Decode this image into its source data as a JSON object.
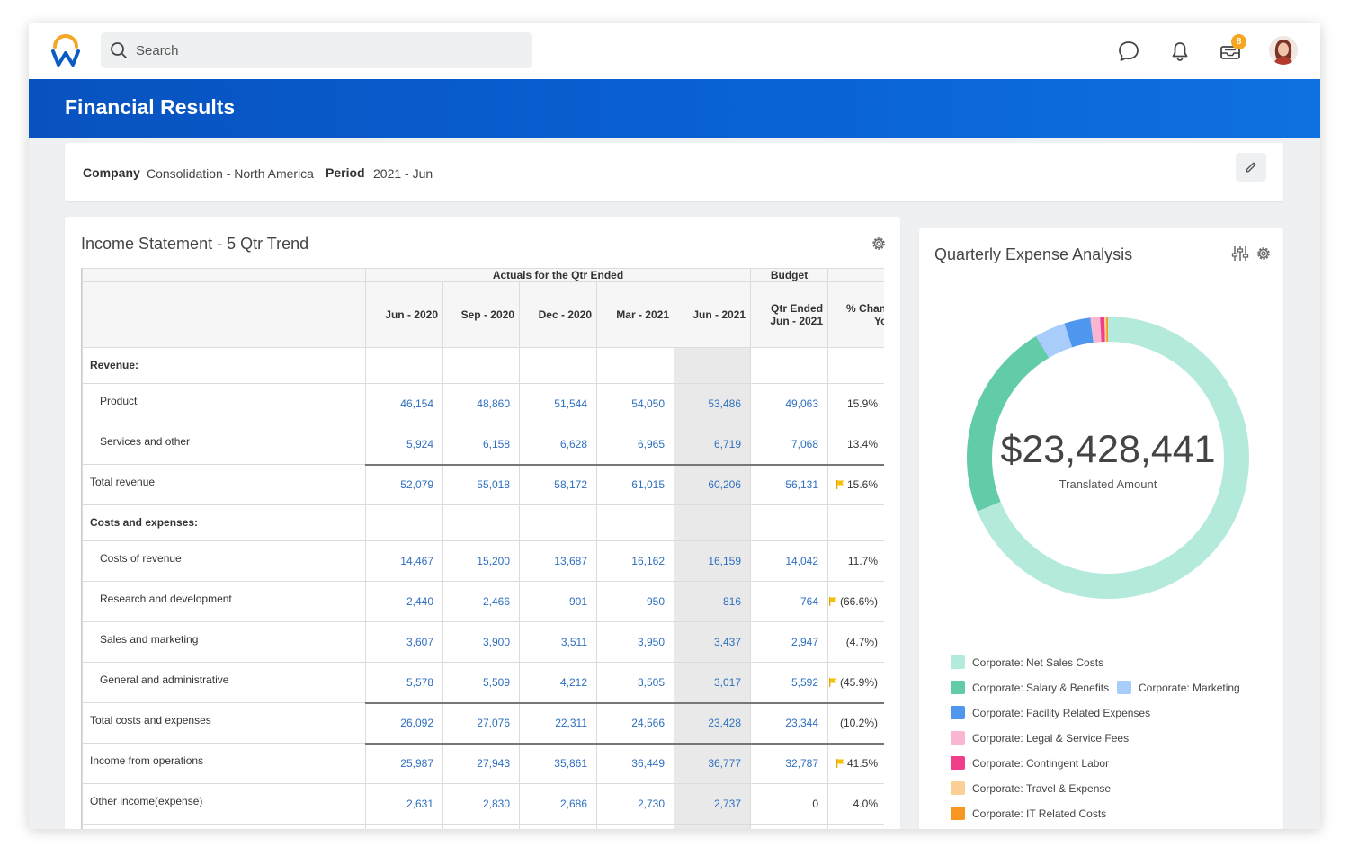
{
  "header": {
    "search_placeholder": "Search",
    "inbox_badge": "8",
    "icons": [
      "workday-logo",
      "search-icon",
      "chat-icon",
      "bell-icon",
      "inbox-icon",
      "avatar"
    ]
  },
  "banner": {
    "title": "Financial Results"
  },
  "prompts": {
    "company_label": "Company",
    "company_value": "Consolidation - North America",
    "period_label": "Period",
    "period_value": "2021 - Jun"
  },
  "income_statement": {
    "title": "Income Statement - 5 Qtr Trend",
    "group_actuals": "Actuals for the Qtr Ended",
    "group_budget": "Budget",
    "col1": "Jun - 2020",
    "col2": "Sep - 2020",
    "col3": "Dec - 2020",
    "col4": "Mar - 2021",
    "col5": "Jun - 2021",
    "col6_line1": "Qtr Ended",
    "col6_line2": "Jun - 2021",
    "col7_line1": "% Change",
    "col7_line2": "Yo",
    "revenue_label": "Revenue:",
    "costs_label": "Costs and expenses:",
    "rows": [
      {
        "label": "Product",
        "v": [
          "46,154",
          "48,860",
          "51,544",
          "54,050",
          "53,486",
          "49,063",
          "15.9%"
        ]
      },
      {
        "label": "Services and other",
        "v": [
          "5,924",
          "6,158",
          "6,628",
          "6,965",
          "6,719",
          "7,068",
          "13.4%"
        ]
      },
      {
        "label": "Total revenue",
        "v": [
          "52,079",
          "55,018",
          "58,172",
          "61,015",
          "60,206",
          "56,131",
          "15.6%"
        ]
      },
      {
        "label": "Costs of revenue",
        "v": [
          "14,467",
          "15,200",
          "13,687",
          "16,162",
          "16,159",
          "14,042",
          "11.7%"
        ]
      },
      {
        "label": "Research and development",
        "v": [
          "2,440",
          "2,466",
          "901",
          "950",
          "816",
          "764",
          "(66.6%)"
        ]
      },
      {
        "label": "Sales and marketing",
        "v": [
          "3,607",
          "3,900",
          "3,511",
          "3,950",
          "3,437",
          "2,947",
          "(4.7%)"
        ]
      },
      {
        "label": "General and administrative",
        "v": [
          "5,578",
          "5,509",
          "4,212",
          "3,505",
          "3,017",
          "5,592",
          "(45.9%)"
        ]
      },
      {
        "label": "Total costs and expenses",
        "v": [
          "26,092",
          "27,076",
          "22,311",
          "24,566",
          "23,428",
          "23,344",
          "(10.2%)"
        ]
      },
      {
        "label": "Income from operations",
        "v": [
          "25,987",
          "27,943",
          "35,861",
          "36,449",
          "36,777",
          "32,787",
          "41.5%"
        ]
      },
      {
        "label": "Other income(expense)",
        "v": [
          "2,631",
          "2,830",
          "2,686",
          "2,730",
          "2,737",
          "0",
          "4.0%"
        ]
      }
    ]
  },
  "expense_analysis": {
    "title": "Quarterly Expense Analysis",
    "amount": "$23,428,441",
    "amount_label": "Translated Amount",
    "segments": [
      {
        "name": "Corporate: Net Sales Costs",
        "share": 0.688,
        "color": "#b3eadb"
      },
      {
        "name": "Corporate: Salary & Benefits",
        "share": 0.227,
        "color": "#62cca8"
      },
      {
        "name": "Corporate: Marketing",
        "share": 0.035,
        "color": "#a9cdfa"
      },
      {
        "name": "Corporate: Facility Related Expenses",
        "share": 0.03,
        "color": "#4f97ee"
      },
      {
        "name": "Corporate: Legal & Service Fees",
        "share": 0.011,
        "color": "#f9b6d3"
      },
      {
        "name": "Corporate: Contingent Labor",
        "share": 0.005,
        "color": "#ef3f8a"
      },
      {
        "name": "Corporate: Travel & Expense",
        "share": 0.002,
        "color": "#fbd097"
      },
      {
        "name": "Corporate: IT Related Costs",
        "share": 0.002,
        "color": "#f79722"
      }
    ]
  }
}
